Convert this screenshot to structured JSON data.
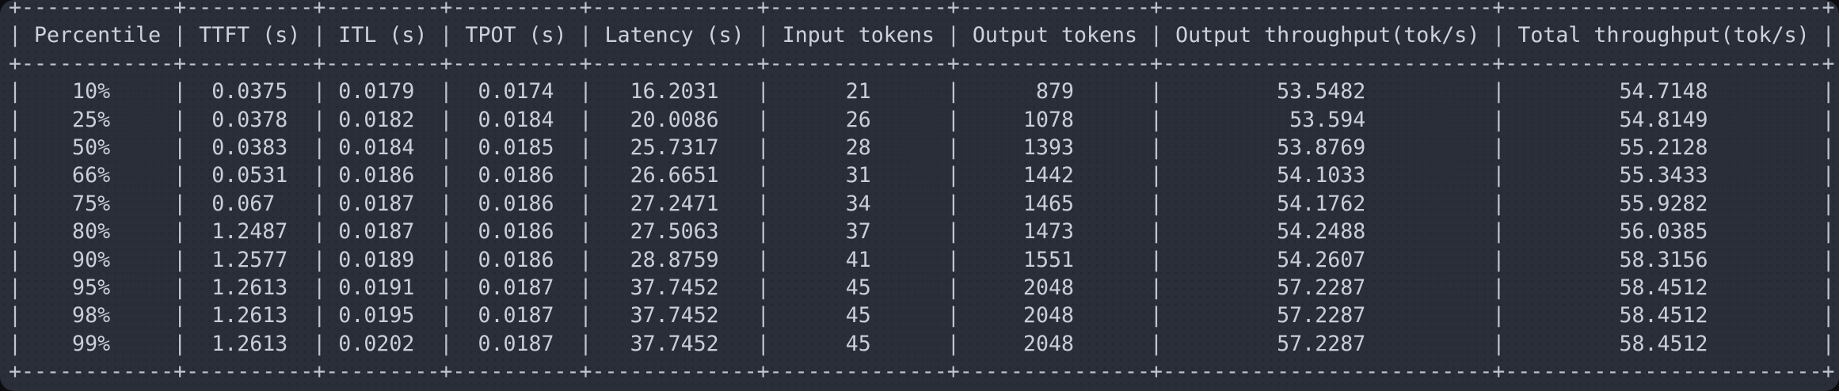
{
  "window": {
    "kind": "terminal",
    "background_color": "#2a2e38",
    "text_color": "#c9cfda"
  },
  "table": {
    "columns": [
      {
        "key": "percentile",
        "label": "Percentile",
        "width": 12
      },
      {
        "key": "ttft-s",
        "label": "TTFT (s)",
        "width": 10
      },
      {
        "key": "itl-s",
        "label": "ITL (s)",
        "width": 9
      },
      {
        "key": "tpot-s",
        "label": "TPOT (s)",
        "width": 10
      },
      {
        "key": "latency-s",
        "label": "Latency (s)",
        "width": 13
      },
      {
        "key": "input-tokens",
        "label": "Input tokens",
        "width": 14
      },
      {
        "key": "output-tokens",
        "label": "Output tokens",
        "width": 15
      },
      {
        "key": "output-throughput",
        "label": "Output throughput(tok/s)",
        "width": 26
      },
      {
        "key": "total-throughput",
        "label": "Total throughput(tok/s)",
        "width": 25
      }
    ],
    "rows": [
      [
        "10%",
        "0.0375",
        "0.0179",
        "0.0174",
        "16.2031",
        "21",
        "879",
        "53.5482",
        "54.7148"
      ],
      [
        "25%",
        "0.0378",
        "0.0182",
        "0.0184",
        "20.0086",
        "26",
        "1078",
        "53.594",
        "54.8149"
      ],
      [
        "50%",
        "0.0383",
        "0.0184",
        "0.0185",
        "25.7317",
        "28",
        "1393",
        "53.8769",
        "55.2128"
      ],
      [
        "66%",
        "0.0531",
        "0.0186",
        "0.0186",
        "26.6651",
        "31",
        "1442",
        "54.1033",
        "55.3433"
      ],
      [
        "75%",
        "0.067",
        "0.0187",
        "0.0186",
        "27.2471",
        "34",
        "1465",
        "54.1762",
        "55.9282"
      ],
      [
        "80%",
        "1.2487",
        "0.0187",
        "0.0186",
        "27.5063",
        "37",
        "1473",
        "54.2488",
        "56.0385"
      ],
      [
        "90%",
        "1.2577",
        "0.0189",
        "0.0186",
        "28.8759",
        "41",
        "1551",
        "54.2607",
        "58.3156"
      ],
      [
        "95%",
        "1.2613",
        "0.0191",
        "0.0187",
        "37.7452",
        "45",
        "2048",
        "57.2287",
        "58.4512"
      ],
      [
        "98%",
        "1.2613",
        "0.0195",
        "0.0187",
        "37.7452",
        "45",
        "2048",
        "57.2287",
        "58.4512"
      ],
      [
        "99%",
        "1.2613",
        "0.0202",
        "0.0187",
        "37.7452",
        "45",
        "2048",
        "57.2287",
        "58.4512"
      ]
    ]
  }
}
